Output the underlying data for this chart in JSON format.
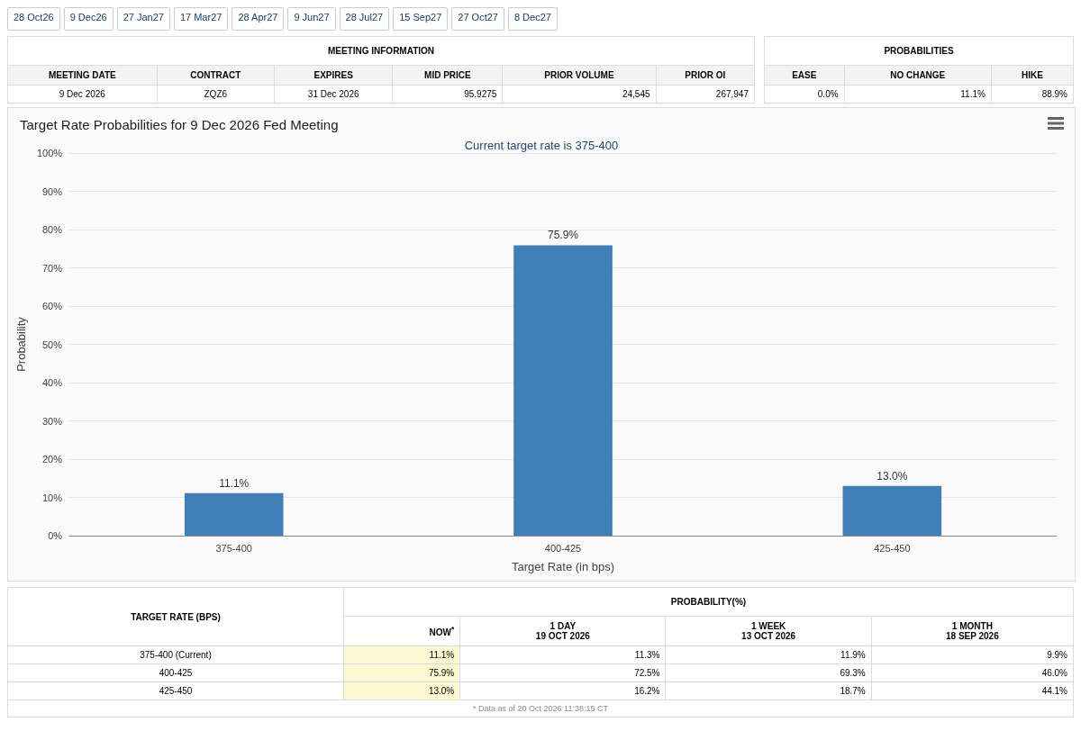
{
  "chart_data": [
    {
      "type": "other",
      "annotations": [
        "28 Oct26",
        "9 Dec26",
        "27 Jan27",
        "17 Mar27",
        "28 Apr27",
        "9 Jun27",
        "28 Jul27",
        "15 Sep27",
        "27 Oct27",
        "8 Dec27"
      ]
    },
    {
      "type": "other",
      "title": "MEETING INFORMATION",
      "categories": [
        "MEETING DATE",
        "CONTRACT",
        "EXPIRES",
        "MID PRICE",
        "PRIOR VOLUME",
        "PRIOR OI"
      ],
      "cell_labels": [
        [
          "9 Dec 2026",
          "ZQZ6",
          "31 Dec 2026",
          "95.9275",
          "24,545",
          "267,947"
        ]
      ]
    },
    {
      "type": "other",
      "title": "PROBABILITIES",
      "categories": [
        "EASE",
        "NO CHANGE",
        "HIKE"
      ],
      "cell_labels": [
        [
          "0.0%",
          "11.1%",
          "88.9%"
        ]
      ]
    },
    {
      "type": "bar",
      "title": "Target Rate Probabilities for 9 Dec 2026 Fed Meeting",
      "subtitle": "Current target rate is 375-400",
      "xlabel": "Target Rate (in bps)",
      "ylabel": "Probability",
      "categories": [
        "375-400",
        "400-425",
        "425-450"
      ],
      "values": [
        11.1,
        75.9,
        13.0
      ],
      "value_labels": [
        "11.1%",
        "75.9%",
        "13.0%"
      ],
      "color": "#4080b8",
      "ylim": [
        0,
        100
      ],
      "yticks": [
        {
          "value": 0,
          "label": "0%"
        },
        {
          "value": 10,
          "label": "10%"
        },
        {
          "value": 20,
          "label": "20%"
        },
        {
          "value": 30,
          "label": "30%"
        },
        {
          "value": 40,
          "label": "40%"
        },
        {
          "value": 50,
          "label": "50%"
        },
        {
          "value": 60,
          "label": "60%"
        },
        {
          "value": 70,
          "label": "70%"
        },
        {
          "value": 80,
          "label": "80%"
        },
        {
          "value": 90,
          "label": "90%"
        },
        {
          "value": 100,
          "label": "100%"
        }
      ],
      "grid": "y"
    },
    {
      "type": "other",
      "title": "PROBABILITY(%)",
      "ylabel": "TARGET RATE (BPS)",
      "categories": [
        "NOW$^{*}$",
        "1 DAY\n19 OCT 2026",
        "1 WEEK\n13 OCT 2026",
        "1 MONTH\n18 SEP 2026"
      ],
      "y_categories": [
        "375-400 (Current)",
        "400-425",
        "425-450"
      ],
      "cell_labels": [
        [
          "11.1%",
          "11.3%",
          "11.9%",
          "9.9%"
        ],
        [
          "75.9%",
          "72.5%",
          "69.3%",
          "46.0%"
        ],
        [
          "13.0%",
          "16.2%",
          "18.7%",
          "44.1%"
        ]
      ],
      "annotations": [
        "* Data as of 20 Oct 2026 11:38:15 CT"
      ]
    }
  ]
}
